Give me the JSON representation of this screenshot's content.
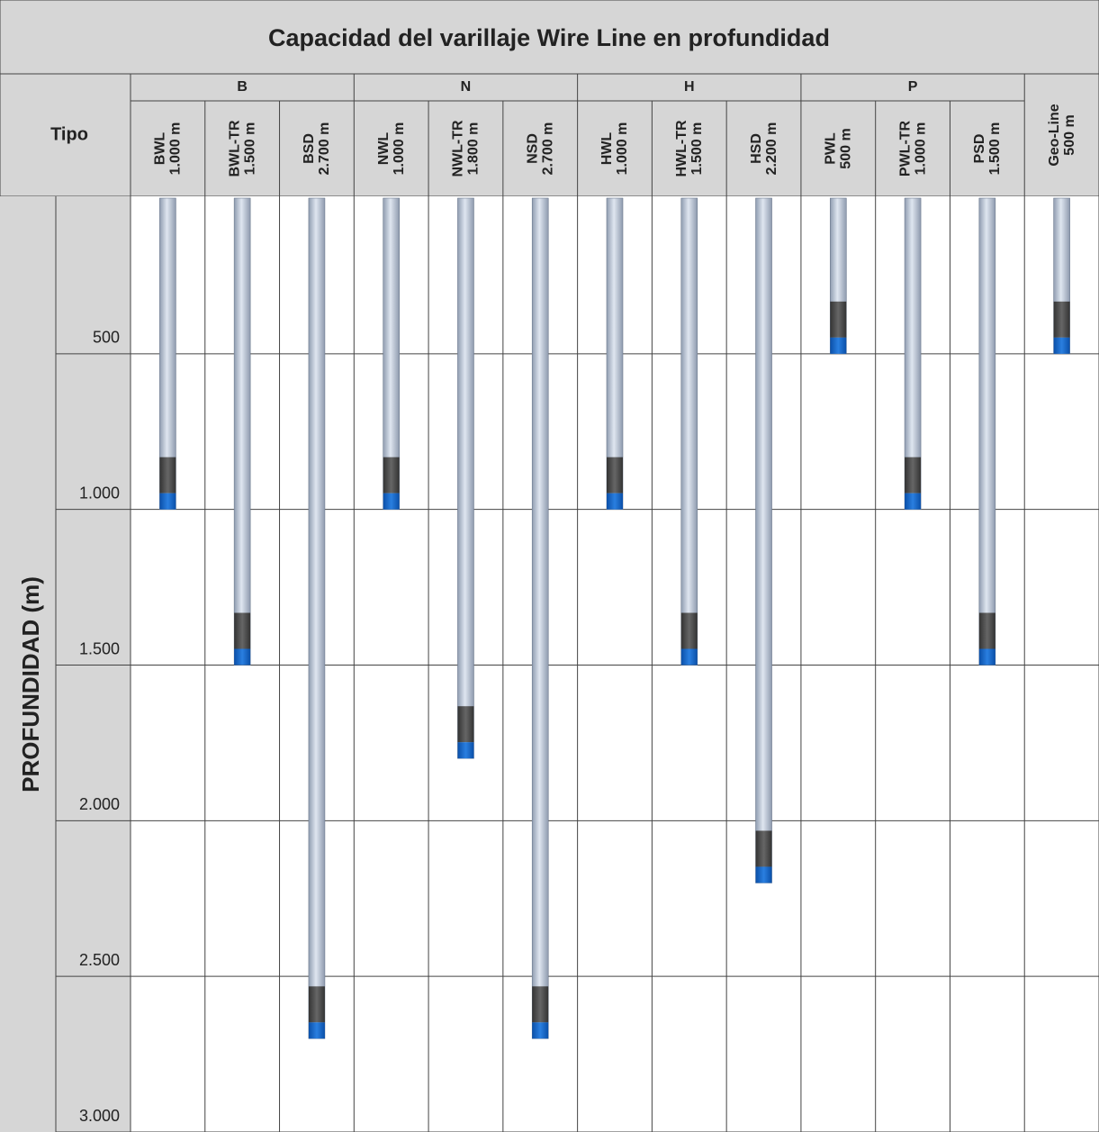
{
  "chart_data": {
    "type": "bar",
    "title": "Capacidad del varillaje Wire Line en profundidad",
    "x_label": "Tipo",
    "y_label": "PROFUNDIDAD (m)",
    "groups": [
      {
        "name": "B",
        "categories": [
          "BWL",
          "BWL-TR",
          "BSD"
        ],
        "values": [
          1000,
          1500,
          2700
        ],
        "value_labels": [
          "1.000 m",
          "1.500 m",
          "2.700 m"
        ]
      },
      {
        "name": "N",
        "categories": [
          "NWL",
          "NWL-TR",
          "NSD"
        ],
        "values": [
          1000,
          1800,
          2700
        ],
        "value_labels": [
          "1.000 m",
          "1.800 m",
          "2.700 m"
        ]
      },
      {
        "name": "H",
        "categories": [
          "HWL",
          "HWL-TR",
          "HSD"
        ],
        "values": [
          1000,
          1500,
          2200
        ],
        "value_labels": [
          "1.000 m",
          "1.500 m",
          "2.200 m"
        ]
      },
      {
        "name": "P",
        "categories": [
          "PWL",
          "PWL-TR",
          "PSD"
        ],
        "values": [
          500,
          1000,
          1500
        ],
        "value_labels": [
          "500 m",
          "1.000 m",
          "1.500 m"
        ]
      },
      {
        "categories": [
          "Geo-Line"
        ],
        "values": [
          500
        ],
        "value_labels": [
          "500 m"
        ]
      }
    ],
    "ylim": [
      0,
      3000
    ],
    "yticks": [
      500,
      {
        "value": 1000,
        "label": "1.000"
      },
      {
        "value": 1500,
        "label": "1.500"
      },
      {
        "value": 2000,
        "label": "2.000"
      },
      {
        "value": 2500,
        "label": "2.500"
      },
      {
        "value": 3000,
        "label": "3.000"
      }
    ],
    "grid": true
  }
}
